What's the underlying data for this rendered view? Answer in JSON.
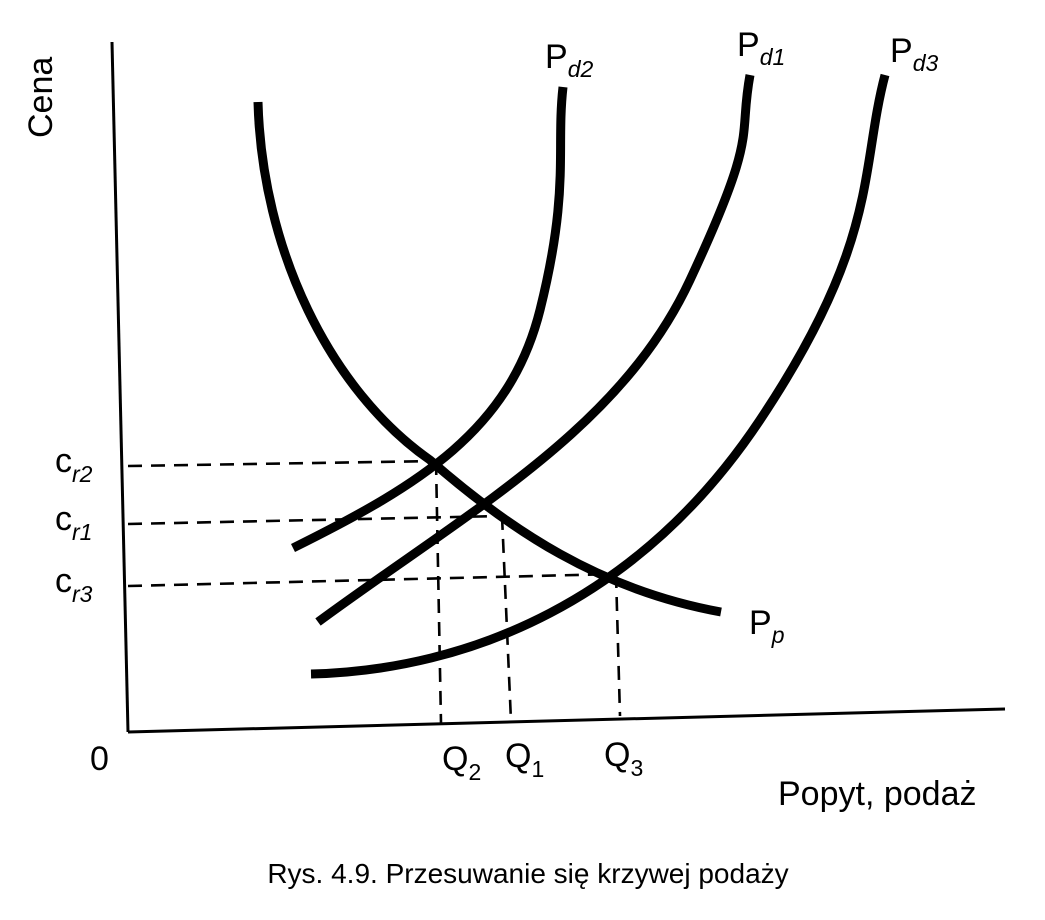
{
  "diagram": {
    "y_axis_label": "Cena",
    "x_axis_label": "Popyt, podaż",
    "origin_label": "0",
    "caption": "Rys. 4.9. Przesuwanie się krzywej podaży",
    "curves": {
      "pd2": {
        "main": "P",
        "sub": "d2"
      },
      "pd1": {
        "main": "P",
        "sub": "d1"
      },
      "pd3": {
        "main": "P",
        "sub": "d3"
      },
      "pp": {
        "main": "P",
        "sub": "p"
      }
    },
    "price_levels": {
      "cr2": {
        "main": "c",
        "sub": "r2"
      },
      "cr1": {
        "main": "c",
        "sub": "r1"
      },
      "cr3": {
        "main": "c",
        "sub": "r3"
      }
    },
    "quantities": {
      "q2": {
        "main": "Q",
        "sub": "2"
      },
      "q1": {
        "main": "Q",
        "sub": "1"
      },
      "q3": {
        "main": "Q",
        "sub": "3"
      }
    }
  }
}
